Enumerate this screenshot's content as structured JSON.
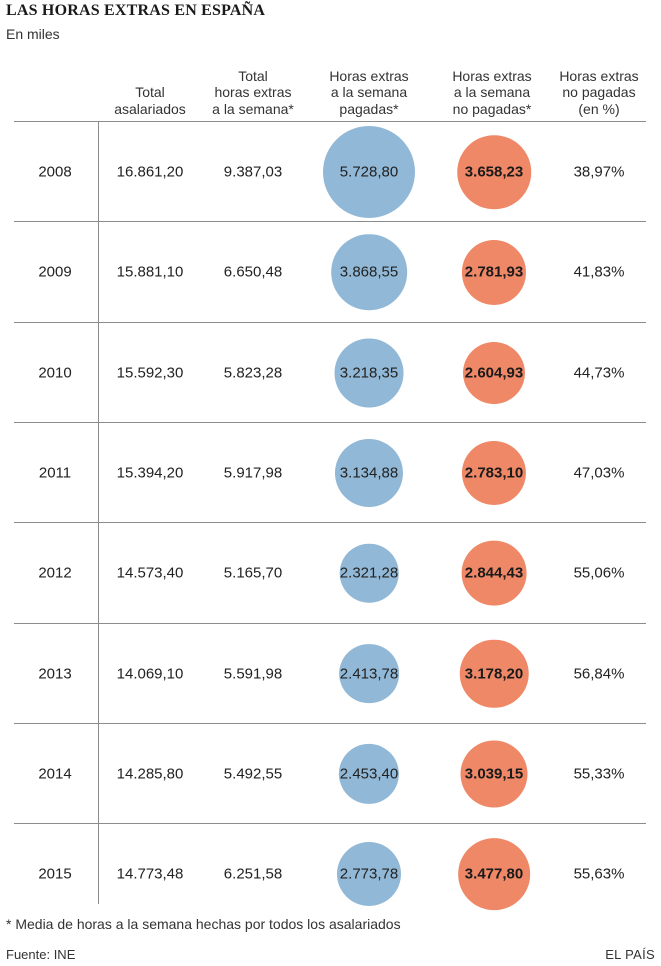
{
  "title": "LAS HORAS EXTRAS EN ESPAÑA",
  "subtitle": "En miles",
  "columns": [
    {
      "lines": [
        "Total",
        "asalariados"
      ]
    },
    {
      "lines": [
        "Total",
        "horas extras",
        "a la semana*"
      ]
    },
    {
      "lines": [
        "Horas extras",
        "a la semana",
        "pagadas*"
      ]
    },
    {
      "lines": [
        "Horas extras",
        "a la semana",
        "no pagadas*"
      ]
    },
    {
      "lines": [
        "Horas extras",
        "no pagadas",
        "(en %)"
      ]
    }
  ],
  "colors": {
    "paid_bubble": "#91b8d6",
    "unpaid_bubble": "#ef8866",
    "rule": "#8c8c8c"
  },
  "footnote": "* Media de horas a la semana hechas por todos los asalariados",
  "source": "Fuente: INE",
  "brand": "EL PAÍS",
  "chart_data": {
    "type": "table",
    "title": "LAS HORAS EXTRAS EN ESPAÑA",
    "subtitle": "En miles",
    "bubble_columns": [
      "paid_label",
      "unpaid_label"
    ],
    "rows": [
      {
        "year": "2008",
        "employees": "16.861,20",
        "total_overtime": "9.387,03",
        "paid": 5728.8,
        "paid_label": "5.728,80",
        "unpaid": 3658.23,
        "unpaid_label": "3.658,23",
        "unpaid_pct": "38,97%"
      },
      {
        "year": "2009",
        "employees": "15.881,10",
        "total_overtime": "6.650,48",
        "paid": 3868.55,
        "paid_label": "3.868,55",
        "unpaid": 2781.93,
        "unpaid_label": "2.781,93",
        "unpaid_pct": "41,83%"
      },
      {
        "year": "2010",
        "employees": "15.592,30",
        "total_overtime": "5.823,28",
        "paid": 3218.35,
        "paid_label": "3.218,35",
        "unpaid": 2604.93,
        "unpaid_label": "2.604,93",
        "unpaid_pct": "44,73%"
      },
      {
        "year": "2011",
        "employees": "15.394,20",
        "total_overtime": "5.917,98",
        "paid": 3134.88,
        "paid_label": "3.134,88",
        "unpaid": 2783.1,
        "unpaid_label": "2.783,10",
        "unpaid_pct": "47,03%"
      },
      {
        "year": "2012",
        "employees": "14.573,40",
        "total_overtime": "5.165,70",
        "paid": 2321.28,
        "paid_label": "2.321,28",
        "unpaid": 2844.43,
        "unpaid_label": "2.844,43",
        "unpaid_pct": "55,06%"
      },
      {
        "year": "2013",
        "employees": "14.069,10",
        "total_overtime": "5.591,98",
        "paid": 2413.78,
        "paid_label": "2.413,78",
        "unpaid": 3178.2,
        "unpaid_label": "3.178,20",
        "unpaid_pct": "56,84%"
      },
      {
        "year": "2014",
        "employees": "14.285,80",
        "total_overtime": "5.492,55",
        "paid": 2453.4,
        "paid_label": "2.453,40",
        "unpaid": 3039.15,
        "unpaid_label": "3.039,15",
        "unpaid_pct": "55,33%"
      },
      {
        "year": "2015",
        "employees": "14.773,48",
        "total_overtime": "6.251,58",
        "paid": 2773.78,
        "paid_label": "2.773,78",
        "unpaid": 3477.8,
        "unpaid_label": "3.477,80",
        "unpaid_pct": "55,63%"
      }
    ]
  }
}
